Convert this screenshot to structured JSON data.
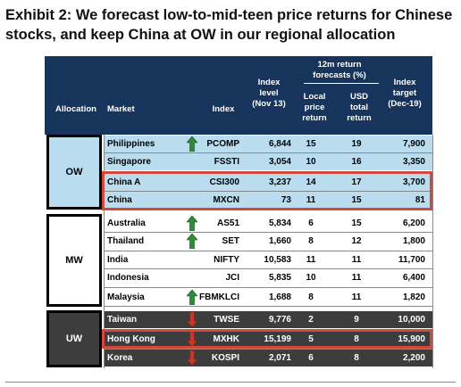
{
  "title": "Exhibit 2: We forecast low-to-mid-teen price returns for Chinese stocks, and keep China at OW in our regional allocation",
  "header": {
    "allocation": "Allocation",
    "market": "Market",
    "index": "Index",
    "level": [
      "Index",
      "level",
      "(Nov 13)"
    ],
    "forecast_group": [
      "12m return",
      "forecasts (%)"
    ],
    "local": [
      "Local",
      "price",
      "return"
    ],
    "usd": [
      "USD",
      "total",
      "return"
    ],
    "target": [
      "Index",
      "target",
      "(Dec-19)"
    ]
  },
  "groups": [
    {
      "label": "OW",
      "rows": [
        {
          "market": "Philippines",
          "arrow": "up",
          "index": "PCOMP",
          "level": "6,844",
          "local": "15",
          "usd": "19",
          "target": "7,900"
        },
        {
          "market": "Singapore",
          "arrow": "",
          "index": "FSSTI",
          "level": "3,054",
          "local": "10",
          "usd": "16",
          "target": "3,350"
        },
        {
          "market": "China A",
          "arrow": "",
          "index": "CSI300",
          "level": "3,237",
          "local": "14",
          "usd": "17",
          "target": "3,700"
        },
        {
          "market": "China",
          "arrow": "",
          "index": "MXCN",
          "level": "73",
          "local": "11",
          "usd": "15",
          "target": "81"
        }
      ]
    },
    {
      "label": "MW",
      "rows": [
        {
          "market": "Australia",
          "arrow": "up",
          "index": "AS51",
          "level": "5,834",
          "local": "6",
          "usd": "15",
          "target": "6,200"
        },
        {
          "market": "Thailand",
          "arrow": "up",
          "index": "SET",
          "level": "1,660",
          "local": "8",
          "usd": "12",
          "target": "1,800"
        },
        {
          "market": "India",
          "arrow": "",
          "index": "NIFTY",
          "level": "10,583",
          "local": "11",
          "usd": "11",
          "target": "11,700"
        },
        {
          "market": "Indonesia",
          "arrow": "",
          "index": "JCI",
          "level": "5,835",
          "local": "10",
          "usd": "11",
          "target": "6,400"
        },
        {
          "market": "Malaysia",
          "arrow": "up",
          "index": "FBMKLCI",
          "level": "1,688",
          "local": "8",
          "usd": "11",
          "target": "1,820"
        }
      ]
    },
    {
      "label": "UW",
      "rows": [
        {
          "market": "Taiwan",
          "arrow": "down",
          "index": "TWSE",
          "level": "9,776",
          "local": "2",
          "usd": "9",
          "target": "10,000"
        },
        {
          "market": "Hong Kong",
          "arrow": "down",
          "index": "MXHK",
          "level": "15,199",
          "local": "5",
          "usd": "8",
          "target": "15,900"
        },
        {
          "market": "Korea",
          "arrow": "down",
          "index": "KOSPI",
          "level": "2,071",
          "local": "6",
          "usd": "8",
          "target": "2,200"
        }
      ]
    }
  ],
  "colors": {
    "up_arrow": "#2e8b3a",
    "down_arrow": "#c0392b",
    "highlight_box": "#d2483a",
    "header_bg": "#16345c"
  }
}
